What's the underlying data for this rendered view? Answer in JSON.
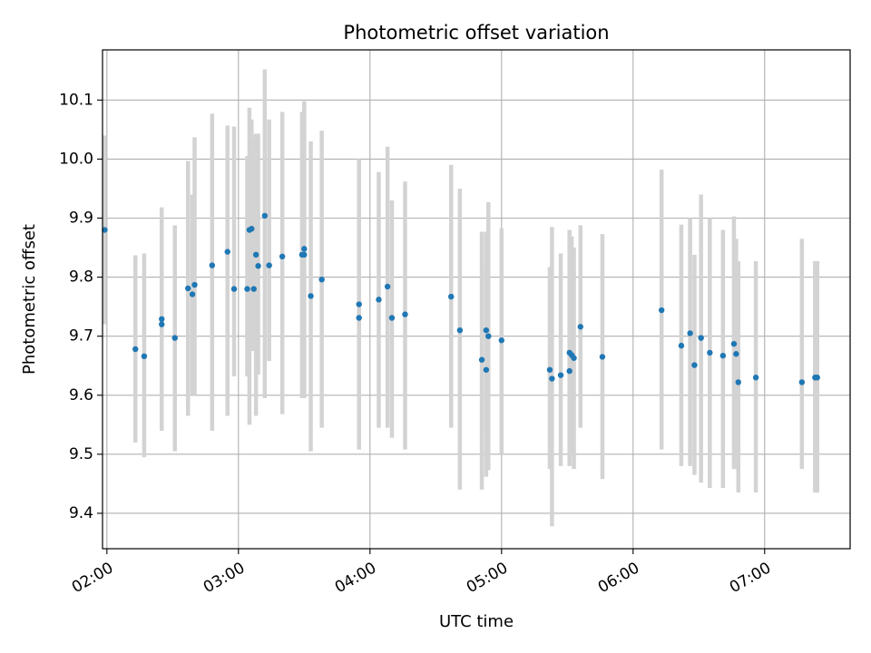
{
  "chart_data": {
    "type": "scatter",
    "title": "Photometric offset variation",
    "xlabel": "UTC time",
    "ylabel": "Photometric offset",
    "grid": true,
    "x_ticks": [
      "02:00",
      "03:00",
      "04:00",
      "05:00",
      "06:00",
      "07:00"
    ],
    "y_ticks": [
      "9.4",
      "9.5",
      "9.6",
      "9.7",
      "9.8",
      "9.9",
      "10.0",
      "10.1"
    ],
    "x_range": [
      "01:58",
      "07:39"
    ],
    "ylim": [
      9.34,
      10.185
    ],
    "colors": {
      "point": "#1f77b4",
      "errorbar": "#d3d3d3",
      "grid": "#b0b0b0"
    },
    "series": [
      {
        "x": [
          "01:59",
          "02:13",
          "02:17",
          "02:25",
          "02:25",
          "02:31",
          "02:37",
          "02:39",
          "02:40",
          "02:48",
          "02:55",
          "02:58",
          "03:04",
          "03:05",
          "03:06",
          "03:07",
          "03:08",
          "03:09",
          "03:12",
          "03:14",
          "03:20",
          "03:29",
          "03:30",
          "03:30",
          "03:33",
          "03:38",
          "03:55",
          "03:55",
          "04:04",
          "04:08",
          "04:10",
          "04:16",
          "04:37",
          "04:41",
          "04:51",
          "04:53",
          "04:53",
          "04:54",
          "05:00",
          "05:22",
          "05:23",
          "05:27",
          "05:31",
          "05:31",
          "05:32",
          "05:33",
          "05:36",
          "05:46",
          "06:13",
          "06:22",
          "06:26",
          "06:28",
          "06:31",
          "06:35",
          "06:41",
          "06:46",
          "06:47",
          "06:48",
          "06:56",
          "07:17",
          "07:23",
          "07:24"
        ],
        "y": [
          9.88,
          9.678,
          9.666,
          9.72,
          9.729,
          9.697,
          9.781,
          9.771,
          9.787,
          9.82,
          9.843,
          9.78,
          9.78,
          9.88,
          9.882,
          9.78,
          9.838,
          9.819,
          9.904,
          9.82,
          9.835,
          9.838,
          9.838,
          9.848,
          9.768,
          9.796,
          9.754,
          9.731,
          9.762,
          9.784,
          9.731,
          9.737,
          9.767,
          9.71,
          9.66,
          9.71,
          9.643,
          9.7,
          9.693,
          9.643,
          9.628,
          9.634,
          9.641,
          9.672,
          9.668,
          9.663,
          9.716,
          9.665,
          9.744,
          9.684,
          9.705,
          9.651,
          9.697,
          9.672,
          9.667,
          9.687,
          9.67,
          9.622,
          9.63,
          9.622,
          9.63,
          9.63
        ],
        "yerr_low": [
          9.72,
          9.52,
          9.495,
          9.54,
          9.54,
          9.505,
          9.565,
          9.6,
          9.6,
          9.54,
          9.565,
          9.632,
          9.632,
          9.55,
          9.675,
          9.675,
          9.565,
          9.635,
          9.595,
          9.658,
          9.568,
          9.595,
          9.598,
          9.595,
          9.505,
          9.545,
          9.508,
          9.508,
          9.545,
          9.545,
          9.528,
          9.508,
          9.545,
          9.44,
          9.44,
          9.54,
          9.462,
          9.473,
          9.5,
          9.475,
          9.378,
          9.48,
          9.48,
          9.493,
          9.498,
          9.475,
          9.545,
          9.458,
          9.508,
          9.48,
          9.48,
          9.465,
          9.452,
          9.443,
          9.443,
          9.475,
          9.475,
          9.435,
          9.435,
          9.475,
          9.435,
          9.435
        ],
        "yerr_high": [
          10.04,
          9.837,
          9.84,
          9.918,
          9.918,
          9.888,
          9.997,
          9.94,
          10.037,
          10.077,
          10.057,
          10.055,
          10.005,
          10.087,
          10.067,
          10.037,
          10.043,
          10.043,
          10.152,
          10.067,
          10.08,
          10.08,
          10.098,
          10.098,
          10.03,
          10.048,
          10.0,
          9.95,
          9.978,
          10.021,
          9.93,
          9.962,
          9.99,
          9.95,
          9.877,
          9.877,
          9.823,
          9.927,
          9.883,
          9.817,
          9.885,
          9.84,
          9.88,
          9.869,
          9.869,
          9.85,
          9.888,
          9.873,
          9.982,
          9.889,
          9.9,
          9.838,
          9.94,
          9.9,
          9.88,
          9.903,
          9.865,
          9.827,
          9.827,
          9.865,
          9.827,
          9.827
        ]
      }
    ]
  }
}
